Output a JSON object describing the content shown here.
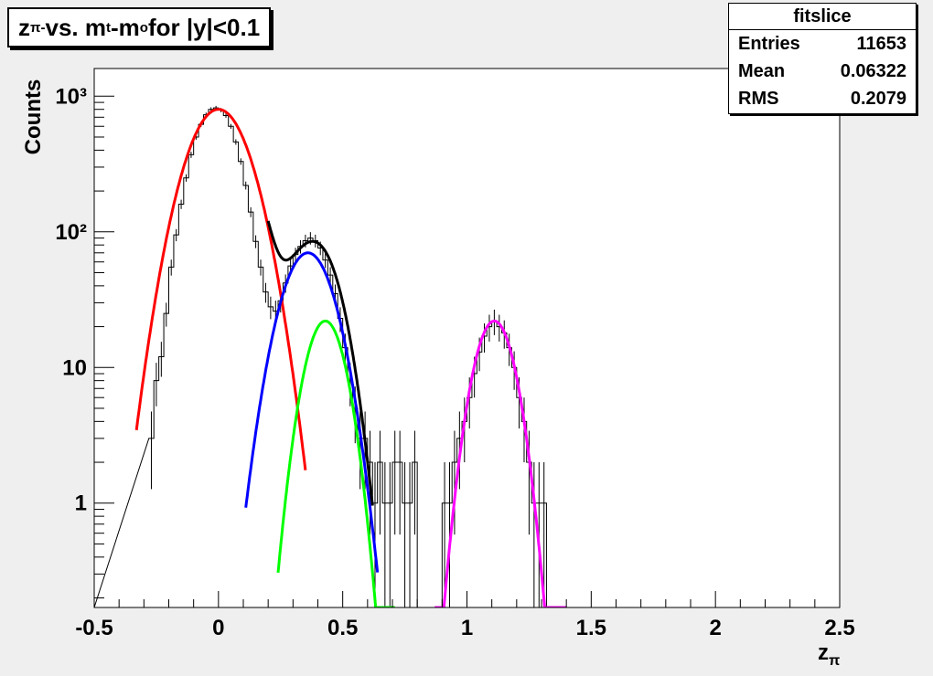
{
  "title": {
    "parts": [
      {
        "t": "z",
        "s": "text"
      },
      {
        "t": "π-",
        "s": "sub"
      },
      {
        "t": " vs. m",
        "s": "text"
      },
      {
        "t": "t",
        "s": "sub"
      },
      {
        "t": "-m",
        "s": "text"
      },
      {
        "t": "o",
        "s": "sub"
      },
      {
        "t": " for |y|<0.1",
        "s": "text"
      }
    ]
  },
  "stats": {
    "title": "fitslice",
    "rows": [
      {
        "label": "Entries",
        "value": "11653"
      },
      {
        "label": "Mean",
        "value": "0.06322"
      },
      {
        "label": "RMS",
        "value": "0.2079"
      }
    ]
  },
  "chart_data": {
    "type": "line",
    "ylabel": "Counts",
    "xlabel": {
      "base": "z",
      "sub": "π"
    },
    "xlim": [
      -0.5,
      2.5
    ],
    "ylim": [
      0.17,
      1600
    ],
    "yscale": "log",
    "x_major_ticks": [
      -0.5,
      0,
      0.5,
      1,
      1.5,
      2,
      2.5
    ],
    "x_tick_labels": [
      "-0.5",
      "0",
      "0.5",
      "1",
      "1.5",
      "2",
      "2.5"
    ],
    "y_tick_values": [
      1,
      10,
      100,
      1000
    ],
    "y_tick_labels": [
      "1",
      "10",
      "10²",
      "10³"
    ],
    "grid": false,
    "colors": {
      "frame_bg": "#efefef",
      "plot_bg": "#ffffff",
      "histogram": "#000000"
    },
    "histogram": {
      "x": [
        -0.27,
        -0.25,
        -0.23,
        -0.21,
        -0.19,
        -0.17,
        -0.15,
        -0.13,
        -0.11,
        -0.09,
        -0.07,
        -0.05,
        -0.03,
        -0.01,
        0.01,
        0.03,
        0.05,
        0.07,
        0.09,
        0.11,
        0.13,
        0.15,
        0.17,
        0.19,
        0.21,
        0.23,
        0.25,
        0.27,
        0.29,
        0.31,
        0.33,
        0.35,
        0.37,
        0.39,
        0.41,
        0.43,
        0.45,
        0.47,
        0.49,
        0.51,
        0.53,
        0.55,
        0.57,
        0.59,
        0.61,
        0.63,
        0.65,
        0.67,
        0.69,
        0.71,
        0.73,
        0.75,
        0.77,
        0.79,
        0.81,
        0.83,
        0.85,
        0.87,
        0.89,
        0.91,
        0.93,
        0.95,
        0.97,
        0.99,
        1.01,
        1.03,
        1.05,
        1.07,
        1.09,
        1.11,
        1.13,
        1.15,
        1.17,
        1.19,
        1.21,
        1.23,
        1.25,
        1.27,
        1.29,
        1.31,
        1.33
      ],
      "y": [
        3,
        8,
        12,
        25,
        55,
        95,
        160,
        250,
        370,
        500,
        620,
        730,
        800,
        820,
        790,
        720,
        600,
        460,
        330,
        220,
        140,
        85,
        55,
        36,
        28,
        26,
        31,
        42,
        56,
        68,
        78,
        86,
        90,
        86,
        76,
        62,
        48,
        35,
        23,
        14,
        8,
        5,
        3,
        3,
        2,
        1,
        2,
        1,
        1,
        2,
        2,
        1,
        1,
        2,
        0,
        0,
        0,
        0,
        0,
        1,
        1,
        2,
        3,
        4,
        6,
        9,
        13,
        17,
        20,
        22,
        20,
        18,
        14,
        10,
        6,
        4,
        2,
        1,
        1,
        1,
        0
      ],
      "bin_width": 0.02
    },
    "series": [
      {
        "color": "#ff0000",
        "mu": 0.0,
        "sigma": 0.1,
        "amp": 800,
        "x_range": [
          -0.33,
          0.35
        ]
      },
      {
        "color": "#0000ff",
        "mu": 0.36,
        "sigma": 0.085,
        "amp": 70,
        "x_range": [
          0.11,
          0.64
        ]
      },
      {
        "color": "#00ff00",
        "mu": 0.43,
        "sigma": 0.065,
        "amp": 22,
        "x_range": [
          0.24,
          0.71
        ]
      },
      {
        "color": "#ff00ff",
        "mu": 1.11,
        "sigma": 0.065,
        "amp": 22,
        "x_range": [
          0.87,
          1.4
        ]
      },
      {
        "color": "#000000",
        "sum_of": [
          0,
          1,
          2
        ],
        "x_range": [
          0.2,
          0.62
        ]
      }
    ]
  }
}
